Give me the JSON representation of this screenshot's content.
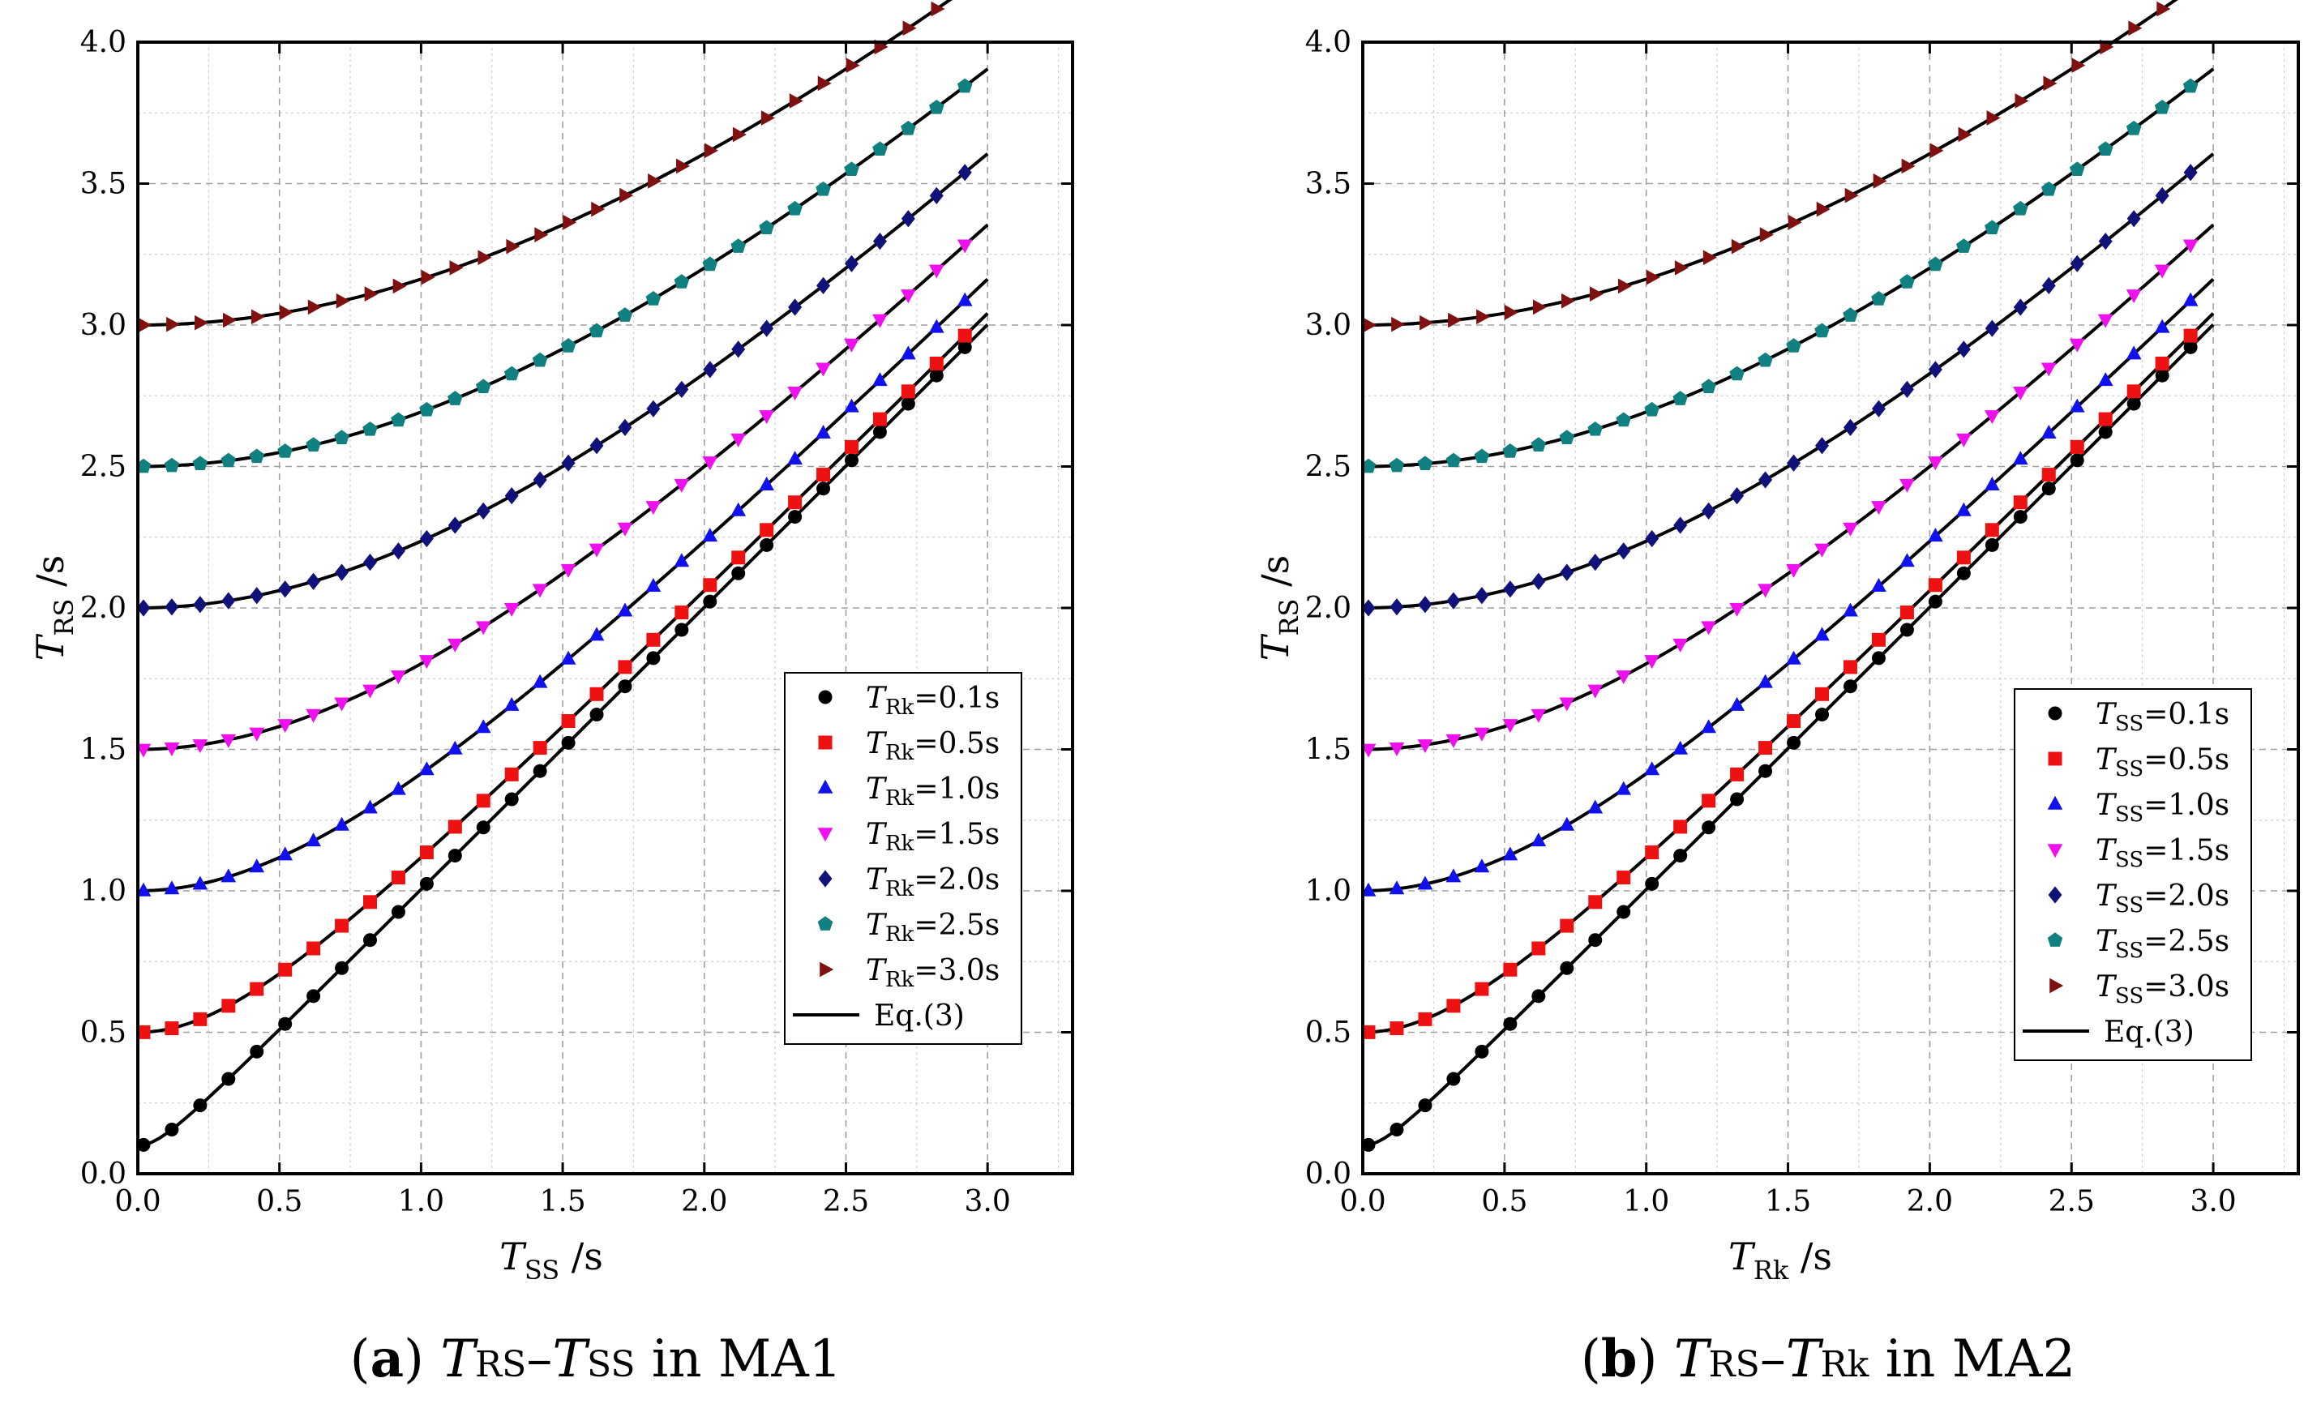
{
  "chart_data": [
    {
      "type": "line",
      "panel": "a",
      "caption": {
        "letter": "(a)",
        "y_main": "T",
        "y_sub": "RS",
        "dash": "–",
        "x_main": "T",
        "x_sub": "SS",
        "suffix": "in MA1"
      },
      "xlabel": {
        "main": "T",
        "sub": "SS",
        "unit": "/s"
      },
      "ylabel": {
        "main": "T",
        "sub": "RS",
        "unit": "/s"
      },
      "xlim": [
        0,
        3.3
      ],
      "ylim": [
        0,
        4
      ],
      "x_ticks": [
        0.0,
        0.5,
        1.0,
        1.5,
        2.0,
        2.5,
        3.0
      ],
      "x_tick_labels": [
        "0.0",
        "0.5",
        "1.0",
        "1.5",
        "2.0",
        "2.5",
        "3.0"
      ],
      "y_ticks": [
        0.0,
        0.5,
        1.0,
        1.5,
        2.0,
        2.5,
        3.0,
        3.5,
        4.0
      ],
      "y_tick_labels": [
        "0.0",
        "0.5",
        "1.0",
        "1.5",
        "2.0",
        "2.5",
        "3.0",
        "3.5",
        "4.0"
      ],
      "grid": true,
      "legend_position": "bottom-right",
      "series": [
        {
          "name": {
            "main": "T",
            "sub": "Rk",
            "rest": "=0.1s"
          },
          "param": 0.1,
          "marker": "circle",
          "color": "#000000"
        },
        {
          "name": {
            "main": "T",
            "sub": "Rk",
            "rest": "=0.5s"
          },
          "param": 0.5,
          "marker": "square",
          "color": "#ee1111"
        },
        {
          "name": {
            "main": "T",
            "sub": "Rk",
            "rest": "=1.0s"
          },
          "param": 1.0,
          "marker": "triangle-up",
          "color": "#1111ee"
        },
        {
          "name": {
            "main": "T",
            "sub": "Rk",
            "rest": "=1.5s"
          },
          "param": 1.5,
          "marker": "triangle-down",
          "color": "#ee11ee"
        },
        {
          "name": {
            "main": "T",
            "sub": "Rk",
            "rest": "=2.0s"
          },
          "param": 2.0,
          "marker": "diamond",
          "color": "#11117a"
        },
        {
          "name": {
            "main": "T",
            "sub": "Rk",
            "rest": "=2.5s"
          },
          "param": 2.5,
          "marker": "pentagon",
          "color": "#118080"
        },
        {
          "name": {
            "main": "T",
            "sub": "Rk",
            "rest": "=3.0s"
          },
          "param": 3.0,
          "marker": "triangle-right",
          "color": "#801111"
        }
      ],
      "fit_line_label": "Eq.(3)",
      "x_samples_start": 0.02,
      "x_samples_step": 0.1,
      "x_samples_count": 30,
      "equation": "T_RS = sqrt(T_SS^2 + T_Rk^2)"
    },
    {
      "type": "line",
      "panel": "b",
      "caption": {
        "letter": "(b)",
        "y_main": "T",
        "y_sub": "RS",
        "dash": "–",
        "x_main": "T",
        "x_sub": "Rk",
        "suffix": "in MA2"
      },
      "xlabel": {
        "main": "T",
        "sub": "Rk",
        "unit": "/s"
      },
      "ylabel": {
        "main": "T",
        "sub": "RS",
        "unit": "/s"
      },
      "xlim": [
        0,
        3.3
      ],
      "ylim": [
        0,
        4
      ],
      "x_ticks": [
        0.0,
        0.5,
        1.0,
        1.5,
        2.0,
        2.5,
        3.0
      ],
      "x_tick_labels": [
        "0.0",
        "0.5",
        "1.0",
        "1.5",
        "2.0",
        "2.5",
        "3.0"
      ],
      "y_ticks": [
        0.0,
        0.5,
        1.0,
        1.5,
        2.0,
        2.5,
        3.0,
        3.5,
        4.0
      ],
      "y_tick_labels": [
        "0.0",
        "0.5",
        "1.0",
        "1.5",
        "2.0",
        "2.5",
        "3.0",
        "3.5",
        "4.0"
      ],
      "grid": true,
      "legend_position": "bottom-right",
      "series": [
        {
          "name": {
            "main": "T",
            "sub": "SS",
            "rest": "=0.1s"
          },
          "param": 0.1,
          "marker": "circle",
          "color": "#000000"
        },
        {
          "name": {
            "main": "T",
            "sub": "SS",
            "rest": "=0.5s"
          },
          "param": 0.5,
          "marker": "square",
          "color": "#ee1111"
        },
        {
          "name": {
            "main": "T",
            "sub": "SS",
            "rest": "=1.0s"
          },
          "param": 1.0,
          "marker": "triangle-up",
          "color": "#1111ee"
        },
        {
          "name": {
            "main": "T",
            "sub": "SS",
            "rest": "=1.5s"
          },
          "param": 1.5,
          "marker": "triangle-down",
          "color": "#ee11ee"
        },
        {
          "name": {
            "main": "T",
            "sub": "SS",
            "rest": "=2.0s"
          },
          "param": 2.0,
          "marker": "diamond",
          "color": "#11117a"
        },
        {
          "name": {
            "main": "T",
            "sub": "SS",
            "rest": "=2.5s"
          },
          "param": 2.5,
          "marker": "pentagon",
          "color": "#118080"
        },
        {
          "name": {
            "main": "T",
            "sub": "SS",
            "rest": "=3.0s"
          },
          "param": 3.0,
          "marker": "triangle-right",
          "color": "#801111"
        }
      ],
      "fit_line_label": "Eq.(3)",
      "x_samples_start": 0.02,
      "x_samples_step": 0.1,
      "x_samples_count": 30,
      "equation": "T_RS = sqrt(T_Rk^2 + T_SS^2)"
    }
  ]
}
